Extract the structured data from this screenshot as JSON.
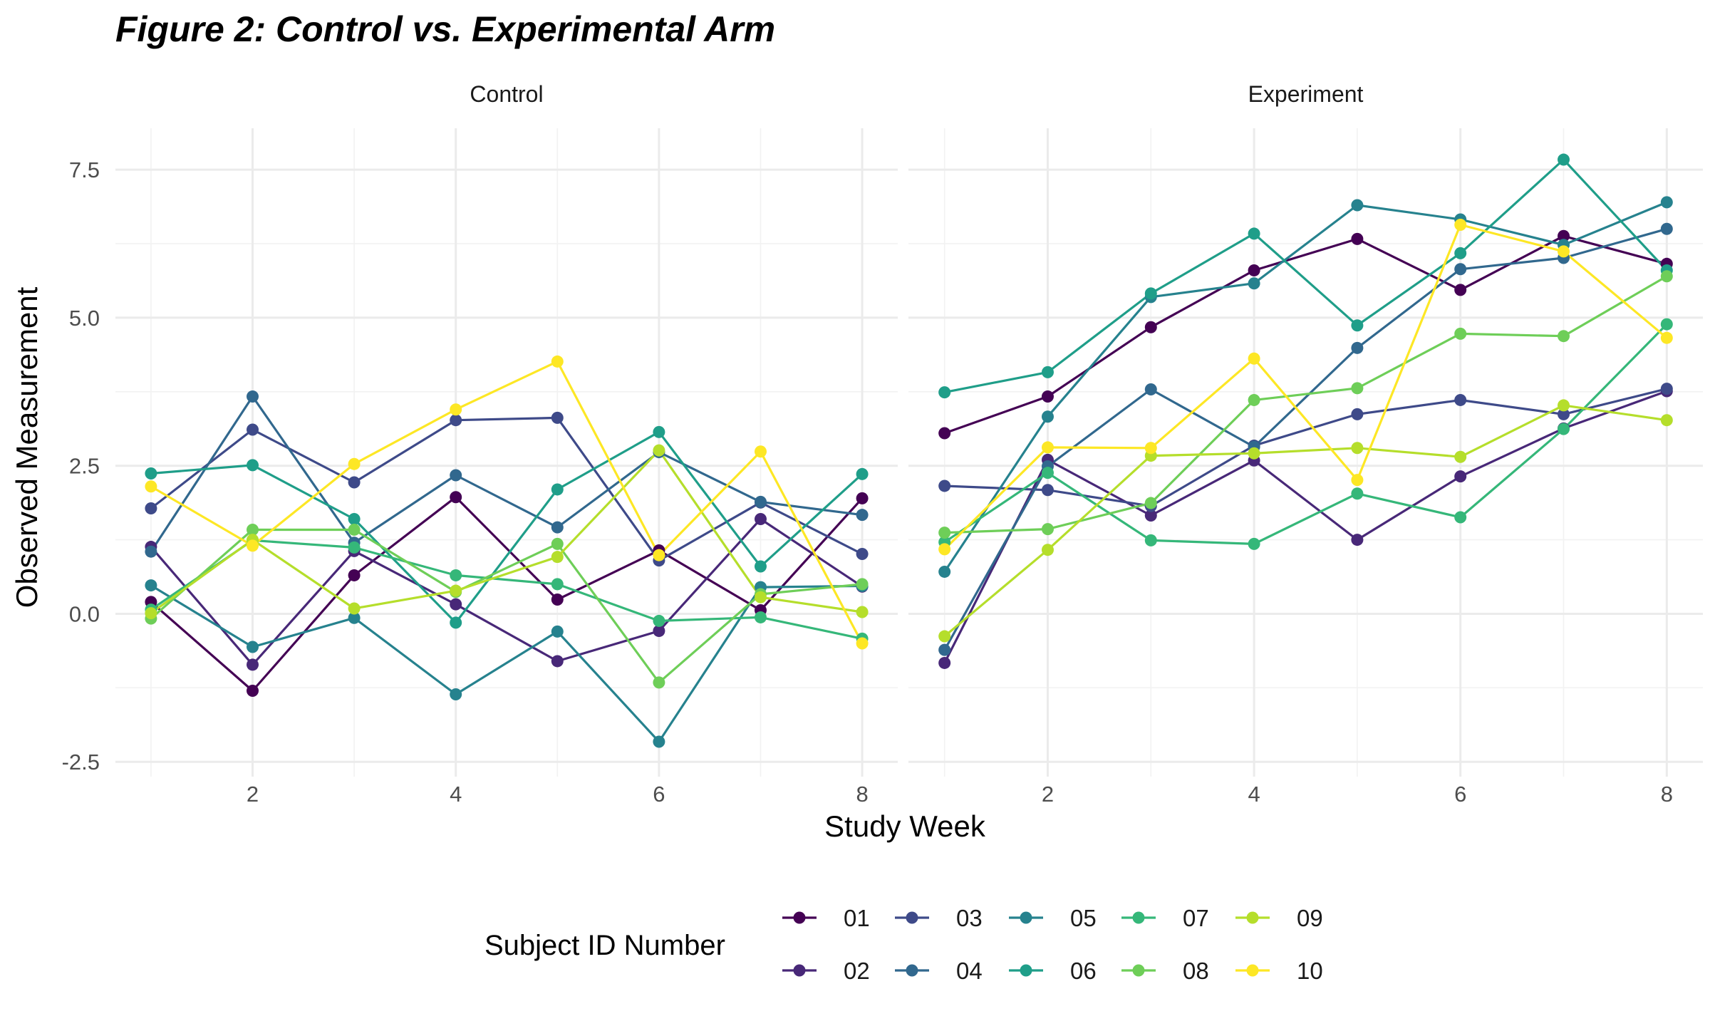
{
  "chart_data": {
    "type": "line",
    "title": "Figure 2: Control vs. Experimental Arm",
    "xlabel": "Study Week",
    "ylabel": "Observed Measurement",
    "x": [
      1,
      2,
      3,
      4,
      5,
      6,
      7,
      8
    ],
    "xlim": [
      0.65,
      8.35
    ],
    "ylim": [
      -2.75,
      8.2
    ],
    "x_ticks": [
      2,
      4,
      6,
      8
    ],
    "x_tick_labels": [
      "2",
      "4",
      "6",
      "8"
    ],
    "y_ticks": [
      -2.5,
      0,
      2.5,
      5,
      7.5
    ],
    "y_tick_labels": [
      "-2.5",
      "0.0",
      "2.5",
      "5.0",
      "7.5"
    ],
    "grid": true,
    "legend": {
      "title": "Subject ID Number",
      "placement": "bottom",
      "entries": [
        "01",
        "02",
        "03",
        "04",
        "05",
        "06",
        "07",
        "08",
        "09",
        "10"
      ],
      "colors": [
        "#440154",
        "#482878",
        "#3e4a89",
        "#31688e",
        "#26828e",
        "#1f9e89",
        "#35b779",
        "#6ece58",
        "#b5de2b",
        "#fde725"
      ]
    },
    "panels": [
      {
        "label": "Control",
        "series": [
          {
            "name": "01",
            "color": "#440154",
            "values": [
              0.2,
              -1.3,
              0.65,
              1.97,
              0.24,
              1.07,
              0.06,
              1.95
            ]
          },
          {
            "name": "02",
            "color": "#482878",
            "values": [
              1.13,
              -0.86,
              1.06,
              0.16,
              -0.8,
              -0.29,
              1.6,
              0.46
            ]
          },
          {
            "name": "03",
            "color": "#3e4a89",
            "values": [
              1.78,
              3.11,
              2.22,
              3.27,
              3.31,
              0.9,
              1.88,
              1.01
            ]
          },
          {
            "name": "04",
            "color": "#31688e",
            "values": [
              1.05,
              3.67,
              1.2,
              2.34,
              1.46,
              2.73,
              1.89,
              1.67
            ]
          },
          {
            "name": "05",
            "color": "#26828e",
            "values": [
              0.48,
              -0.56,
              -0.07,
              -1.36,
              -0.3,
              -2.16,
              0.45,
              0.47
            ]
          },
          {
            "name": "06",
            "color": "#1f9e89",
            "values": [
              2.37,
              2.51,
              1.6,
              -0.15,
              2.1,
              3.07,
              0.8,
              2.36
            ]
          },
          {
            "name": "07",
            "color": "#35b779",
            "values": [
              0.07,
              1.24,
              1.12,
              0.65,
              0.5,
              -0.12,
              -0.06,
              -0.42
            ]
          },
          {
            "name": "08",
            "color": "#6ece58",
            "values": [
              -0.08,
              1.42,
              1.42,
              0.37,
              1.18,
              -1.16,
              0.33,
              0.5
            ]
          },
          {
            "name": "09",
            "color": "#b5de2b",
            "values": [
              0.01,
              1.25,
              0.09,
              0.39,
              0.96,
              2.76,
              0.28,
              0.03
            ]
          },
          {
            "name": "10",
            "color": "#fde725",
            "values": [
              2.15,
              1.15,
              2.53,
              3.45,
              4.26,
              0.99,
              2.74,
              -0.5
            ]
          }
        ]
      },
      {
        "label": "Experiment",
        "series": [
          {
            "name": "01",
            "color": "#440154",
            "values": [
              3.05,
              3.67,
              4.84,
              5.8,
              6.33,
              5.47,
              6.38,
              5.91
            ]
          },
          {
            "name": "02",
            "color": "#482878",
            "values": [
              -0.83,
              2.6,
              1.66,
              2.59,
              1.25,
              2.32,
              3.13,
              3.76
            ]
          },
          {
            "name": "03",
            "color": "#3e4a89",
            "values": [
              2.16,
              2.09,
              1.82,
              2.84,
              3.37,
              3.61,
              3.37,
              3.8
            ]
          },
          {
            "name": "04",
            "color": "#31688e",
            "values": [
              -0.61,
              2.49,
              3.79,
              2.82,
              4.49,
              5.82,
              6.01,
              6.5
            ]
          },
          {
            "name": "05",
            "color": "#26828e",
            "values": [
              0.71,
              3.33,
              5.35,
              5.58,
              6.9,
              6.66,
              6.23,
              6.95
            ]
          },
          {
            "name": "06",
            "color": "#1f9e89",
            "values": [
              3.74,
              4.08,
              5.41,
              6.42,
              4.87,
              6.09,
              7.67,
              5.8
            ]
          },
          {
            "name": "07",
            "color": "#35b779",
            "values": [
              1.21,
              2.38,
              1.24,
              1.18,
              2.03,
              1.63,
              3.12,
              4.89
            ]
          },
          {
            "name": "08",
            "color": "#6ece58",
            "values": [
              1.37,
              1.43,
              1.87,
              3.61,
              3.81,
              4.73,
              4.69,
              5.7
            ]
          },
          {
            "name": "09",
            "color": "#b5de2b",
            "values": [
              -0.38,
              1.08,
              2.67,
              2.71,
              2.8,
              2.65,
              3.52,
              3.27
            ]
          },
          {
            "name": "10",
            "color": "#fde725",
            "values": [
              1.09,
              2.81,
              2.8,
              4.31,
              2.26,
              6.57,
              6.12,
              4.66
            ]
          }
        ]
      }
    ]
  }
}
